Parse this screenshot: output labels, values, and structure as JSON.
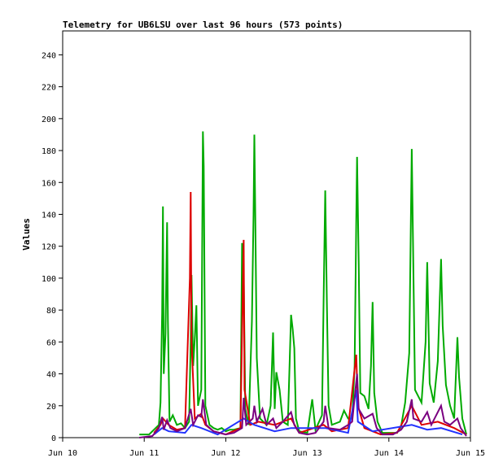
{
  "chart_data": {
    "type": "line",
    "title": "Telemetry for UB6LSU over last 96 hours (573 points)",
    "xlabel": "",
    "ylabel": "Values",
    "x_ticks": [
      "Jun 10",
      "Jun 11",
      "Jun 12",
      "Jun 13",
      "Jun 14",
      "Jun 15"
    ],
    "x_range": [
      "Jun 10",
      "Jun 15"
    ],
    "y_ticks": [
      0,
      20,
      40,
      60,
      80,
      100,
      120,
      140,
      160,
      180,
      200,
      220,
      240
    ],
    "ylim": [
      0,
      255
    ],
    "grid": false,
    "legend": "none",
    "series": [
      {
        "color": "#00aa00",
        "points": [
          [
            0.94,
            2
          ],
          [
            1.0,
            2
          ],
          [
            1.06,
            2
          ],
          [
            1.12,
            5
          ],
          [
            1.18,
            8
          ],
          [
            1.2,
            22
          ],
          [
            1.22,
            78
          ],
          [
            1.23,
            145
          ],
          [
            1.24,
            40
          ],
          [
            1.26,
            65
          ],
          [
            1.28,
            135
          ],
          [
            1.29,
            73
          ],
          [
            1.31,
            10
          ],
          [
            1.35,
            14
          ],
          [
            1.4,
            8
          ],
          [
            1.45,
            9
          ],
          [
            1.5,
            6
          ],
          [
            1.55,
            10
          ],
          [
            1.57,
            60
          ],
          [
            1.58,
            102
          ],
          [
            1.6,
            45
          ],
          [
            1.62,
            62
          ],
          [
            1.64,
            83
          ],
          [
            1.66,
            20
          ],
          [
            1.7,
            30
          ],
          [
            1.72,
            192
          ],
          [
            1.73,
            170
          ],
          [
            1.75,
            20
          ],
          [
            1.8,
            8
          ],
          [
            1.85,
            6
          ],
          [
            1.9,
            5
          ],
          [
            1.95,
            6
          ],
          [
            2.0,
            4
          ],
          [
            2.05,
            5
          ],
          [
            2.1,
            5
          ],
          [
            2.18,
            6
          ],
          [
            2.2,
            122
          ],
          [
            2.22,
            101
          ],
          [
            2.24,
            18
          ],
          [
            2.28,
            8
          ],
          [
            2.32,
            73
          ],
          [
            2.34,
            140
          ],
          [
            2.35,
            190
          ],
          [
            2.36,
            146
          ],
          [
            2.38,
            50
          ],
          [
            2.42,
            12
          ],
          [
            2.5,
            8
          ],
          [
            2.55,
            20
          ],
          [
            2.58,
            66
          ],
          [
            2.6,
            18
          ],
          [
            2.62,
            41
          ],
          [
            2.66,
            30
          ],
          [
            2.7,
            10
          ],
          [
            2.76,
            8
          ],
          [
            2.8,
            77
          ],
          [
            2.82,
            68
          ],
          [
            2.84,
            56
          ],
          [
            2.86,
            12
          ],
          [
            2.9,
            4
          ],
          [
            3.0,
            3
          ],
          [
            3.06,
            24
          ],
          [
            3.1,
            5
          ],
          [
            3.18,
            14
          ],
          [
            3.2,
            86
          ],
          [
            3.22,
            155
          ],
          [
            3.24,
            85
          ],
          [
            3.26,
            20
          ],
          [
            3.3,
            8
          ],
          [
            3.4,
            10
          ],
          [
            3.45,
            17
          ],
          [
            3.5,
            12
          ],
          [
            3.55,
            12
          ],
          [
            3.58,
            45
          ],
          [
            3.6,
            136
          ],
          [
            3.61,
            176
          ],
          [
            3.63,
            110
          ],
          [
            3.65,
            28
          ],
          [
            3.7,
            26
          ],
          [
            3.75,
            18
          ],
          [
            3.78,
            45
          ],
          [
            3.8,
            85
          ],
          [
            3.82,
            28
          ],
          [
            3.86,
            10
          ],
          [
            3.92,
            3
          ],
          [
            4.0,
            3
          ],
          [
            4.1,
            3
          ],
          [
            4.15,
            7
          ],
          [
            4.2,
            22
          ],
          [
            4.25,
            53
          ],
          [
            4.28,
            181
          ],
          [
            4.3,
            105
          ],
          [
            4.32,
            30
          ],
          [
            4.4,
            22
          ],
          [
            4.45,
            60
          ],
          [
            4.47,
            110
          ],
          [
            4.5,
            34
          ],
          [
            4.55,
            22
          ],
          [
            4.6,
            48
          ],
          [
            4.64,
            112
          ],
          [
            4.66,
            70
          ],
          [
            4.7,
            33
          ],
          [
            4.75,
            20
          ],
          [
            4.8,
            12
          ],
          [
            4.84,
            63
          ],
          [
            4.86,
            38
          ],
          [
            4.9,
            12
          ],
          [
            4.95,
            2
          ]
        ]
      },
      {
        "color": "#dd0000",
        "points": [
          [
            1.12,
            3
          ],
          [
            1.2,
            8
          ],
          [
            1.23,
            12
          ],
          [
            1.3,
            8
          ],
          [
            1.4,
            5
          ],
          [
            1.5,
            6
          ],
          [
            1.56,
            100
          ],
          [
            1.57,
            154
          ],
          [
            1.58,
            60
          ],
          [
            1.62,
            12
          ],
          [
            1.7,
            15
          ],
          [
            1.75,
            8
          ],
          [
            1.85,
            4
          ],
          [
            2.0,
            2
          ],
          [
            2.18,
            6
          ],
          [
            2.22,
            124
          ],
          [
            2.23,
            30
          ],
          [
            2.3,
            8
          ],
          [
            2.4,
            10
          ],
          [
            2.6,
            8
          ],
          [
            2.8,
            12
          ],
          [
            2.9,
            3
          ],
          [
            3.2,
            8
          ],
          [
            3.3,
            4
          ],
          [
            3.5,
            6
          ],
          [
            3.6,
            52
          ],
          [
            3.62,
            20
          ],
          [
            3.7,
            6
          ],
          [
            3.9,
            2
          ],
          [
            4.1,
            3
          ],
          [
            4.28,
            20
          ],
          [
            4.4,
            8
          ],
          [
            4.6,
            10
          ],
          [
            4.8,
            6
          ],
          [
            4.95,
            2
          ]
        ]
      },
      {
        "color": "#2233ff",
        "points": [
          [
            1.12,
            2
          ],
          [
            1.22,
            6
          ],
          [
            1.3,
            4
          ],
          [
            1.5,
            3
          ],
          [
            1.58,
            8
          ],
          [
            1.7,
            6
          ],
          [
            1.9,
            2
          ],
          [
            2.22,
            12
          ],
          [
            2.35,
            8
          ],
          [
            2.6,
            4
          ],
          [
            2.8,
            6
          ],
          [
            3.22,
            6
          ],
          [
            3.5,
            3
          ],
          [
            3.6,
            30
          ],
          [
            3.62,
            10
          ],
          [
            3.8,
            4
          ],
          [
            4.28,
            8
          ],
          [
            4.47,
            5
          ],
          [
            4.64,
            6
          ],
          [
            4.9,
            2
          ]
        ]
      },
      {
        "color": "#7a0080",
        "points": [
          [
            0.94,
            0
          ],
          [
            1.1,
            1
          ],
          [
            1.18,
            6
          ],
          [
            1.22,
            13
          ],
          [
            1.24,
            5
          ],
          [
            1.28,
            11
          ],
          [
            1.32,
            6
          ],
          [
            1.4,
            4
          ],
          [
            1.5,
            6
          ],
          [
            1.57,
            18
          ],
          [
            1.6,
            8
          ],
          [
            1.66,
            14
          ],
          [
            1.7,
            13
          ],
          [
            1.72,
            24
          ],
          [
            1.76,
            8
          ],
          [
            1.85,
            4
          ],
          [
            2.0,
            2
          ],
          [
            2.1,
            3
          ],
          [
            2.2,
            6
          ],
          [
            2.22,
            25
          ],
          [
            2.25,
            8
          ],
          [
            2.33,
            12
          ],
          [
            2.35,
            20
          ],
          [
            2.38,
            10
          ],
          [
            2.45,
            18
          ],
          [
            2.5,
            8
          ],
          [
            2.58,
            12
          ],
          [
            2.62,
            6
          ],
          [
            2.7,
            10
          ],
          [
            2.8,
            16
          ],
          [
            2.84,
            8
          ],
          [
            2.9,
            3
          ],
          [
            3.0,
            2
          ],
          [
            3.1,
            3
          ],
          [
            3.2,
            10
          ],
          [
            3.22,
            20
          ],
          [
            3.26,
            6
          ],
          [
            3.4,
            5
          ],
          [
            3.5,
            8
          ],
          [
            3.55,
            10
          ],
          [
            3.61,
            40
          ],
          [
            3.63,
            18
          ],
          [
            3.7,
            12
          ],
          [
            3.8,
            15
          ],
          [
            3.85,
            6
          ],
          [
            3.92,
            2
          ],
          [
            4.05,
            2
          ],
          [
            4.15,
            5
          ],
          [
            4.22,
            10
          ],
          [
            4.28,
            24
          ],
          [
            4.3,
            12
          ],
          [
            4.4,
            10
          ],
          [
            4.47,
            16
          ],
          [
            4.52,
            8
          ],
          [
            4.64,
            20
          ],
          [
            4.68,
            10
          ],
          [
            4.75,
            8
          ],
          [
            4.84,
            12
          ],
          [
            4.88,
            6
          ],
          [
            4.95,
            1
          ]
        ]
      }
    ]
  }
}
